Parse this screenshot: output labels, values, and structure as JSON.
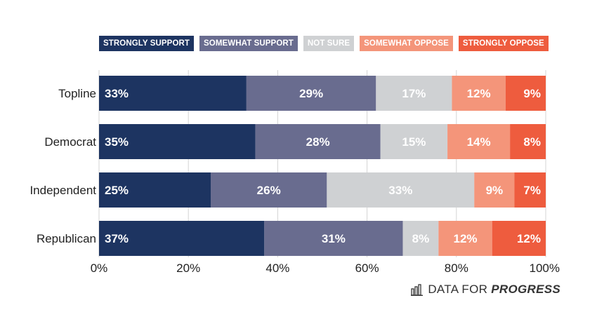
{
  "legend": [
    "STRONGLY SUPPORT",
    "SOMEWHAT SUPPORT",
    "NOT SURE",
    "SOMEWHAT OPPOSE",
    "STRONGLY OPPOSE"
  ],
  "colors": {
    "strongly_support": "#1d3461",
    "somewhat_support": "#696c8f",
    "not_sure": "#cfd1d3",
    "somewhat_oppose": "#f4957a",
    "strongly_oppose": "#ee5c3e"
  },
  "logo": {
    "light": "DATA FOR",
    "bold": "PROGRESS",
    "icon": "bar-chart-icon"
  },
  "chart_data": {
    "type": "bar",
    "orientation": "horizontal",
    "stacked": true,
    "categories": [
      "Topline",
      "Democrat",
      "Independent",
      "Republican"
    ],
    "series": [
      {
        "name": "STRONGLY SUPPORT",
        "values": [
          33,
          35,
          25,
          37
        ]
      },
      {
        "name": "SOMEWHAT SUPPORT",
        "values": [
          29,
          28,
          26,
          31
        ]
      },
      {
        "name": "NOT SURE",
        "values": [
          17,
          15,
          33,
          8
        ]
      },
      {
        "name": "SOMEWHAT OPPOSE",
        "values": [
          12,
          14,
          9,
          12
        ]
      },
      {
        "name": "STRONGLY OPPOSE",
        "values": [
          9,
          8,
          7,
          12
        ]
      }
    ],
    "x_ticks": [
      "0%",
      "20%",
      "40%",
      "60%",
      "80%",
      "100%"
    ],
    "xlim": [
      0,
      100
    ],
    "grid": true,
    "legend_position": "top"
  }
}
